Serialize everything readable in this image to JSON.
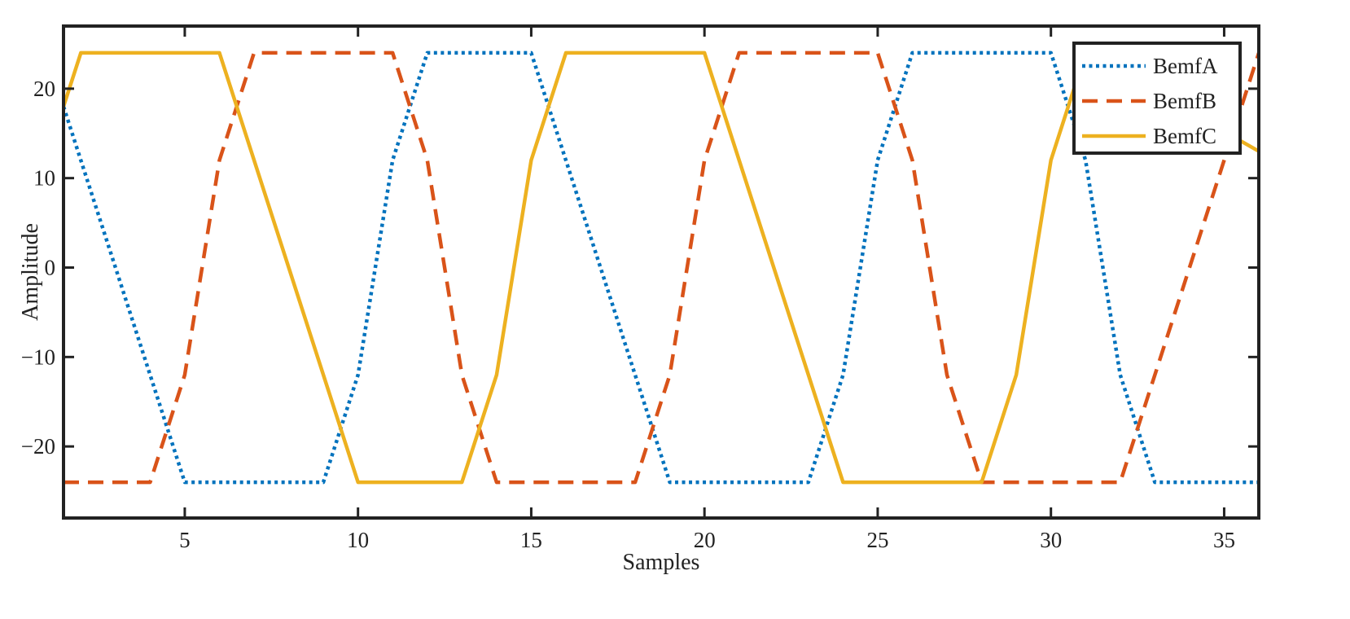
{
  "chart_data": {
    "type": "line",
    "title": "",
    "xlabel": "Samples",
    "ylabel": "Amplitude",
    "xlim": [
      1.5,
      36
    ],
    "ylim": [
      -28,
      27
    ],
    "xticks": [
      5,
      10,
      15,
      20,
      25,
      30,
      35
    ],
    "yticks": [
      20,
      10,
      0,
      -10,
      -20
    ],
    "ytick_labels": [
      "20",
      "10",
      "0",
      "−10",
      "−20"
    ],
    "grid": false,
    "legend_position": "top-right",
    "series": [
      {
        "name": "BemfA",
        "style": "dotted",
        "color": "#0072BD",
        "x": [
          1.5,
          5,
          9,
          10,
          11,
          12,
          15,
          19,
          23,
          24,
          25,
          26,
          30,
          31,
          32,
          33,
          36
        ],
        "y": [
          18,
          -24,
          -24,
          -12,
          12,
          24,
          24,
          -24,
          -24,
          -12,
          12,
          24,
          24,
          12,
          -12,
          -24,
          -24
        ]
      },
      {
        "name": "BemfB",
        "style": "dashed",
        "color": "#D95319",
        "x": [
          1.5,
          4,
          5,
          6,
          7,
          11,
          12,
          13,
          14,
          18,
          19,
          20,
          21,
          25,
          26,
          27,
          28,
          29,
          32,
          36
        ],
        "y": [
          -24,
          -24,
          -12,
          12,
          24,
          24,
          12,
          -12,
          -24,
          -24,
          -12,
          12,
          24,
          24,
          12,
          -12,
          -24,
          -24,
          -24,
          24
        ]
      },
      {
        "name": "BemfC",
        "style": "solid",
        "color": "#EDB120",
        "x": [
          1.5,
          2,
          6,
          10,
          13,
          14,
          15,
          16,
          20,
          24,
          28,
          29,
          30,
          31,
          36
        ],
        "y": [
          18,
          24,
          24,
          -24,
          -24,
          -12,
          12,
          24,
          24,
          -24,
          -24,
          -12,
          12,
          24,
          13
        ]
      }
    ]
  }
}
